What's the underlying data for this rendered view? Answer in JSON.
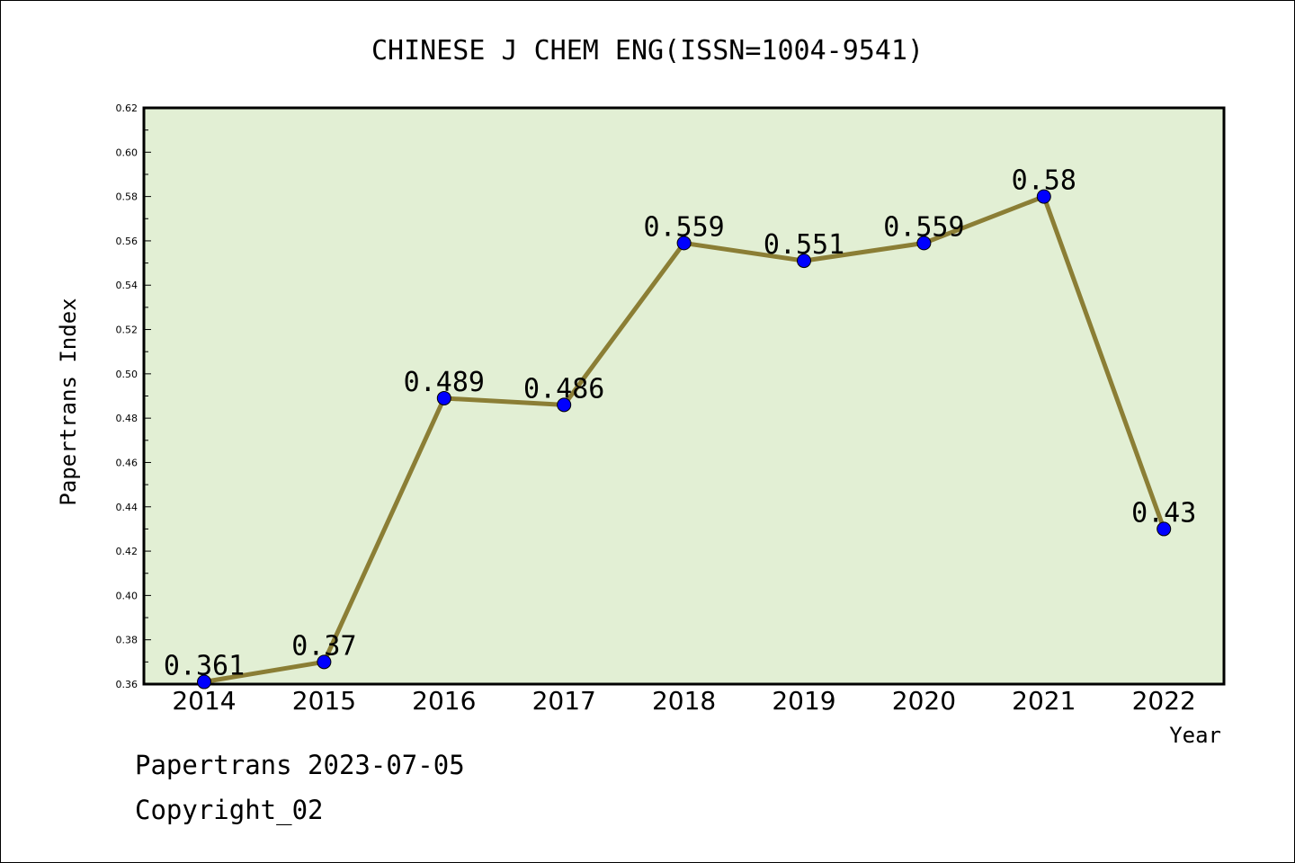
{
  "footer": {
    "source": "Papertrans 2023-07-05",
    "copyright": "Copyright_02"
  },
  "chart_data": {
    "type": "line",
    "title": "CHINESE J CHEM ENG(ISSN=1004-9541)",
    "xlabel": "Year",
    "ylabel": "Papertrans Index",
    "x": [
      "2014",
      "2015",
      "2016",
      "2017",
      "2018",
      "2019",
      "2020",
      "2021",
      "2022"
    ],
    "series": [
      {
        "values": [
          0.361,
          0.37,
          0.489,
          0.486,
          0.559,
          0.551,
          0.559,
          0.58,
          0.43
        ],
        "labels": [
          "0.361",
          "0.37",
          "0.489",
          "0.486",
          "0.559",
          "0.551",
          "0.559",
          "0.58",
          "0.43"
        ]
      }
    ],
    "ylim": [
      0.36,
      0.62
    ],
    "yticks": [
      "0.36",
      "0.38",
      "0.40",
      "0.42",
      "0.44",
      "0.46",
      "0.48",
      "0.50",
      "0.52",
      "0.54",
      "0.56",
      "0.58",
      "0.60",
      "0.62"
    ],
    "colors": {
      "plot_background": "#e2efd4",
      "line": "#8b7e35",
      "marker": "#0000ff"
    },
    "grid": false,
    "legend": "none"
  }
}
